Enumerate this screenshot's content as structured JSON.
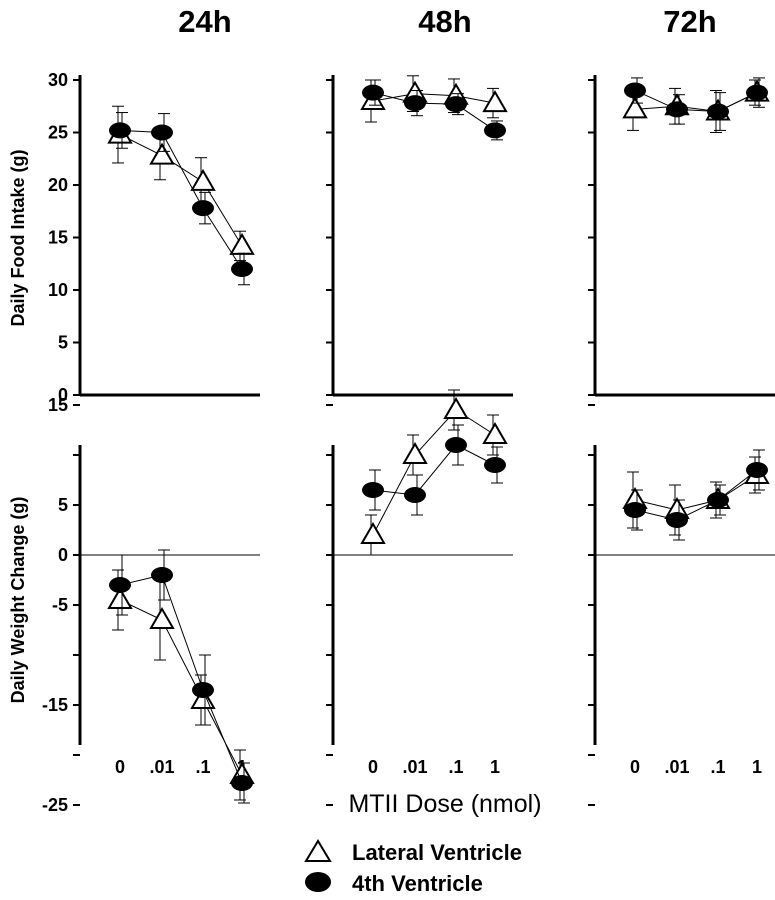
{
  "chart_data": [
    {
      "type": "line",
      "column_title": "24h",
      "ylabel": "Daily Food Intake (g)",
      "ylim": [
        0,
        30
      ],
      "yticks": [
        "0",
        "5",
        "10",
        "15",
        "20",
        "25",
        "30"
      ],
      "categories": [
        "0",
        ".01",
        ".1",
        "1"
      ],
      "series": [
        {
          "name": "Lateral Ventricle",
          "values": [
            24.8,
            22.8,
            20.3,
            14.2
          ],
          "errors": [
            2.7,
            2.3,
            2.3,
            1.4
          ]
        },
        {
          "name": "4th Ventricle",
          "values": [
            25.2,
            25.0,
            17.8,
            12.0
          ],
          "errors": [
            1.7,
            1.8,
            1.5,
            1.5
          ]
        }
      ]
    },
    {
      "type": "line",
      "column_title": "48h",
      "ylim": [
        0,
        30
      ],
      "categories": [
        "0",
        ".01",
        ".1",
        "1"
      ],
      "series": [
        {
          "name": "Lateral Ventricle",
          "values": [
            28.0,
            28.7,
            28.5,
            27.8
          ],
          "errors": [
            2.0,
            1.7,
            1.6,
            1.4
          ]
        },
        {
          "name": "4th Ventricle",
          "values": [
            28.8,
            27.8,
            27.7,
            25.2
          ],
          "errors": [
            1.2,
            1.2,
            1.0,
            0.9
          ]
        }
      ]
    },
    {
      "type": "line",
      "column_title": "72h",
      "ylim": [
        0,
        30
      ],
      "categories": [
        "0",
        ".01",
        ".1",
        "1"
      ],
      "series": [
        {
          "name": "Lateral Ventricle",
          "values": [
            27.2,
            27.5,
            27.0,
            28.8
          ],
          "errors": [
            2.0,
            1.7,
            2.0,
            1.2
          ]
        },
        {
          "name": "4th Ventricle",
          "values": [
            29.0,
            27.2,
            27.0,
            28.8
          ],
          "errors": [
            1.2,
            1.4,
            1.8,
            1.4
          ]
        }
      ]
    },
    {
      "type": "line",
      "ylabel": "Daily Weight Change (g)",
      "ylim": [
        -27,
        15
      ],
      "yticks": [
        "15",
        "5",
        "0",
        "-5",
        "-15",
        "-25"
      ],
      "categories": [
        "0",
        ".01",
        ".1",
        "1"
      ],
      "series": [
        {
          "name": "Lateral Ventricle",
          "values": [
            -4.5,
            -6.5,
            -14.5,
            -22.0
          ],
          "errors": [
            3.0,
            4.0,
            2.5,
            2.5
          ]
        },
        {
          "name": "4th Ventricle",
          "values": [
            -3.0,
            -2.0,
            -13.5,
            -22.8
          ],
          "errors": [
            3.0,
            2.5,
            3.5,
            2.0
          ]
        }
      ]
    },
    {
      "type": "line",
      "ylim": [
        -27,
        15
      ],
      "categories": [
        "0",
        ".01",
        ".1",
        "1"
      ],
      "series": [
        {
          "name": "Lateral Ventricle",
          "values": [
            2.0,
            10.0,
            14.5,
            12.0
          ],
          "errors": [
            2.0,
            2.0,
            2.0,
            2.0
          ]
        },
        {
          "name": "4th Ventricle",
          "values": [
            6.5,
            6.0,
            11.0,
            9.0
          ],
          "errors": [
            2.0,
            2.0,
            2.0,
            1.8
          ]
        }
      ]
    },
    {
      "type": "line",
      "ylim": [
        -27,
        15
      ],
      "categories": [
        "0",
        ".01",
        ".1",
        "1"
      ],
      "series": [
        {
          "name": "Lateral Ventricle",
          "values": [
            5.5,
            4.5,
            5.5,
            8.0
          ],
          "errors": [
            2.8,
            2.5,
            1.8,
            1.8
          ]
        },
        {
          "name": "4th Ventricle",
          "values": [
            4.5,
            3.5,
            5.5,
            8.5
          ],
          "errors": [
            2.0,
            2.0,
            1.5,
            2.0
          ]
        }
      ]
    }
  ],
  "xlabel": "MTII Dose (nmol)",
  "legend": {
    "lateral": "Lateral Ventricle",
    "fourth": "4th Ventricle"
  }
}
